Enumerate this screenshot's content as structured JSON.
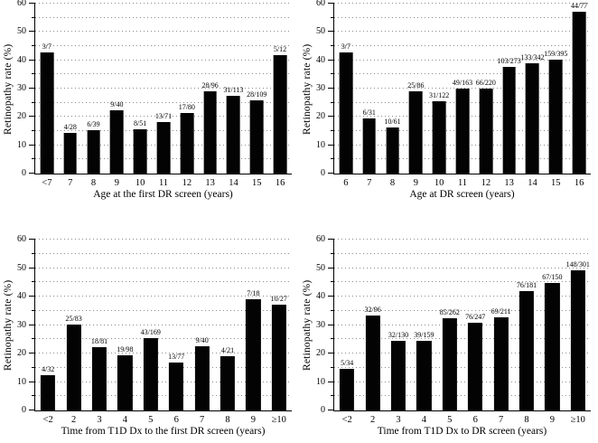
{
  "figure": {
    "background_color": "#ffffff",
    "bar_color": "#030303",
    "grid_color": "#8c8c8c",
    "axis_color": "#000000"
  },
  "chart_data": [
    {
      "type": "bar",
      "position": "top-left",
      "title": "",
      "xlabel": "Age at the first DR screen (years)",
      "ylabel": "Retinopathy rate (%)",
      "ylim": [
        0,
        60
      ],
      "yticks": [
        0,
        10,
        20,
        30,
        40,
        50,
        60
      ],
      "gridline_step": 5,
      "grid": "dotted horizontal",
      "legend": "none",
      "categories": [
        "<7",
        "7",
        "8",
        "9",
        "10",
        "11",
        "12",
        "13",
        "14",
        "15",
        "16"
      ],
      "values": [
        42.9,
        14.3,
        15.4,
        22.5,
        15.7,
        18.3,
        21.3,
        29.2,
        27.4,
        25.7,
        41.7
      ],
      "bar_labels": [
        "3/7",
        "4/28",
        "6/39",
        "9/40",
        "8/51",
        "13/71",
        "17/80",
        "28/96",
        "31/113",
        "28/109",
        "5/12"
      ]
    },
    {
      "type": "bar",
      "position": "top-right",
      "title": "",
      "xlabel": "Age at DR screen (years)",
      "ylabel": "Retinopathy rate (%)",
      "ylim": [
        0,
        60
      ],
      "yticks": [
        0,
        10,
        20,
        30,
        40,
        50,
        60
      ],
      "gridline_step": 5,
      "grid": "dotted horizontal",
      "legend": "none",
      "categories": [
        "6",
        "7",
        "8",
        "9",
        "10",
        "11",
        "12",
        "13",
        "14",
        "15",
        "16"
      ],
      "values": [
        42.9,
        19.4,
        16.4,
        29.1,
        25.4,
        30.1,
        30.0,
        37.7,
        38.9,
        40.3,
        57.1
      ],
      "bar_labels": [
        "3/7",
        "6/31",
        "10/61",
        "25/86",
        "31/122",
        "49/163",
        "66/220",
        "103/273",
        "133/342",
        "159/395",
        "44/77"
      ]
    },
    {
      "type": "bar",
      "position": "bottom-left",
      "title": "",
      "xlabel": "Time from T1D Dx to the first DR screen (years)",
      "ylabel": "Retinopathy rate (%)",
      "ylim": [
        0,
        60
      ],
      "yticks": [
        0,
        10,
        20,
        30,
        40,
        50,
        60
      ],
      "gridline_step": 5,
      "grid": "dotted horizontal",
      "legend": "none",
      "categories": [
        "<2",
        "2",
        "3",
        "4",
        "5",
        "6",
        "7",
        "8",
        "9",
        "≥10"
      ],
      "values": [
        12.5,
        30.1,
        22.2,
        19.4,
        25.4,
        16.9,
        22.5,
        19.0,
        38.9,
        37.0
      ],
      "bar_labels": [
        "4/32",
        "25/83",
        "18/81",
        "19/98",
        "43/169",
        "13/77",
        "9/40",
        "4/21",
        "7/18",
        "10/27"
      ]
    },
    {
      "type": "bar",
      "position": "bottom-right",
      "title": "",
      "xlabel": "Time from T1D Dx to DR screen (years)",
      "ylabel": "Retinopathy rate (%)",
      "ylim": [
        0,
        60
      ],
      "yticks": [
        0,
        10,
        20,
        30,
        40,
        50,
        60
      ],
      "gridline_step": 5,
      "grid": "dotted horizontal",
      "legend": "none",
      "categories": [
        "<2",
        "2",
        "3",
        "4",
        "5",
        "6",
        "7",
        "8",
        "9",
        "≥10"
      ],
      "values": [
        14.7,
        33.3,
        24.6,
        24.5,
        32.4,
        30.8,
        32.7,
        42.0,
        44.7,
        49.2
      ],
      "bar_labels": [
        "5/34",
        "32/96",
        "32/130",
        "39/159",
        "85/262",
        "76/247",
        "69/211",
        "76/181",
        "67/150",
        "148/301"
      ]
    }
  ]
}
